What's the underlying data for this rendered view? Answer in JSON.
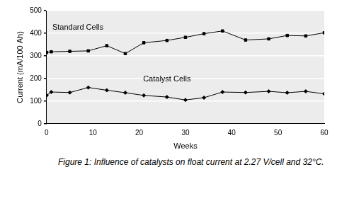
{
  "chart_data": {
    "type": "line",
    "title": "Figure 1: Influence of catalysts on float current at 2.27 V/cell and 32°C.",
    "x_label": "Weeks",
    "y_label": "Current (mA/100 Ah)",
    "x": [
      0,
      1,
      5,
      9,
      13,
      17,
      21,
      26,
      30,
      34,
      38,
      43,
      48,
      52,
      56,
      60
    ],
    "series": [
      {
        "name": "Standard Cells",
        "color": "#000000",
        "marker": "square",
        "values": [
          315,
          318,
          320,
          322,
          345,
          310,
          358,
          368,
          382,
          398,
          410,
          370,
          375,
          390,
          388,
          402
        ]
      },
      {
        "name": "Catalyst Cells",
        "color": "#000000",
        "marker": "diamond",
        "values": [
          125,
          140,
          138,
          160,
          148,
          137,
          125,
          118,
          105,
          115,
          140,
          138,
          143,
          137,
          143,
          132
        ]
      }
    ],
    "xlim": [
      0,
      60
    ],
    "xticks": [
      0,
      10,
      20,
      30,
      40,
      50,
      60
    ],
    "ylim": [
      0,
      500
    ],
    "yticks": [
      0,
      100,
      200,
      300,
      400,
      500
    ],
    "grid": "y"
  }
}
